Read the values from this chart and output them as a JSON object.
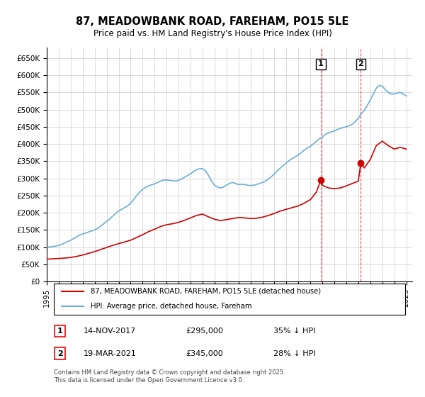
{
  "title": "87, MEADOWBANK ROAD, FAREHAM, PO15 5LE",
  "subtitle": "Price paid vs. HM Land Registry's House Price Index (HPI)",
  "title_fontsize": 11,
  "subtitle_fontsize": 9,
  "hpi_color": "#6aaed6",
  "price_color": "#cc0000",
  "grid_color": "#cccccc",
  "bg_color": "#ffffff",
  "ylim": [
    0,
    680000
  ],
  "yticks": [
    0,
    50000,
    100000,
    150000,
    200000,
    250000,
    300000,
    350000,
    400000,
    450000,
    500000,
    550000,
    600000,
    650000
  ],
  "ytick_labels": [
    "£0",
    "£50K",
    "£100K",
    "£150K",
    "£200K",
    "£250K",
    "£300K",
    "£350K",
    "£400K",
    "£450K",
    "£500K",
    "£550K",
    "£600K",
    "£650K"
  ],
  "xlim_start": 1995.0,
  "xlim_end": 2025.5,
  "marker1_x": 2017.87,
  "marker1_y": 295000,
  "marker1_label": "1",
  "marker1_date": "14-NOV-2017",
  "marker1_price": "£295,000",
  "marker1_hpi": "35% ↓ HPI",
  "marker2_x": 2021.21,
  "marker2_y": 345000,
  "marker2_label": "2",
  "marker2_date": "19-MAR-2021",
  "marker2_price": "£345,000",
  "marker2_hpi": "28% ↓ HPI",
  "legend_line1": "87, MEADOWBANK ROAD, FAREHAM, PO15 5LE (detached house)",
  "legend_line2": "HPI: Average price, detached house, Fareham",
  "footer": "Contains HM Land Registry data © Crown copyright and database right 2025.\nThis data is licensed under the Open Government Licence v3.0.",
  "hpi_x": [
    1995.0,
    1995.25,
    1995.5,
    1995.75,
    1996.0,
    1996.25,
    1996.5,
    1996.75,
    1997.0,
    1997.25,
    1997.5,
    1997.75,
    1998.0,
    1998.25,
    1998.5,
    1998.75,
    1999.0,
    1999.25,
    1999.5,
    1999.75,
    2000.0,
    2000.25,
    2000.5,
    2000.75,
    2001.0,
    2001.25,
    2001.5,
    2001.75,
    2002.0,
    2002.25,
    2002.5,
    2002.75,
    2003.0,
    2003.25,
    2003.5,
    2003.75,
    2004.0,
    2004.25,
    2004.5,
    2004.75,
    2005.0,
    2005.25,
    2005.5,
    2005.75,
    2006.0,
    2006.25,
    2006.5,
    2006.75,
    2007.0,
    2007.25,
    2007.5,
    2007.75,
    2008.0,
    2008.25,
    2008.5,
    2008.75,
    2009.0,
    2009.25,
    2009.5,
    2009.75,
    2010.0,
    2010.25,
    2010.5,
    2010.75,
    2011.0,
    2011.25,
    2011.5,
    2011.75,
    2012.0,
    2012.25,
    2012.5,
    2012.75,
    2013.0,
    2013.25,
    2013.5,
    2013.75,
    2014.0,
    2014.25,
    2014.5,
    2014.75,
    2015.0,
    2015.25,
    2015.5,
    2015.75,
    2016.0,
    2016.25,
    2016.5,
    2016.75,
    2017.0,
    2017.25,
    2017.5,
    2017.75,
    2018.0,
    2018.25,
    2018.5,
    2018.75,
    2019.0,
    2019.25,
    2019.5,
    2019.75,
    2020.0,
    2020.25,
    2020.5,
    2020.75,
    2021.0,
    2021.25,
    2021.5,
    2021.75,
    2022.0,
    2022.25,
    2022.5,
    2022.75,
    2023.0,
    2023.25,
    2023.5,
    2023.75,
    2024.0,
    2024.25,
    2024.5,
    2024.75,
    2025.0
  ],
  "hpi_y": [
    100000,
    100500,
    101500,
    103000,
    105000,
    108000,
    112000,
    116000,
    120000,
    125000,
    130000,
    135000,
    138000,
    141000,
    144000,
    147000,
    150000,
    155000,
    161000,
    168000,
    175000,
    182000,
    190000,
    198000,
    205000,
    210000,
    215000,
    220000,
    228000,
    238000,
    250000,
    260000,
    268000,
    274000,
    278000,
    281000,
    284000,
    288000,
    292000,
    295000,
    295000,
    294000,
    293000,
    292000,
    294000,
    298000,
    303000,
    308000,
    313000,
    320000,
    325000,
    328000,
    328000,
    322000,
    308000,
    292000,
    280000,
    275000,
    272000,
    275000,
    280000,
    285000,
    288000,
    285000,
    282000,
    283000,
    282000,
    280000,
    279000,
    280000,
    282000,
    285000,
    288000,
    292000,
    298000,
    305000,
    313000,
    322000,
    330000,
    338000,
    345000,
    352000,
    358000,
    363000,
    368000,
    375000,
    382000,
    388000,
    393000,
    400000,
    408000,
    415000,
    420000,
    428000,
    432000,
    435000,
    438000,
    442000,
    445000,
    448000,
    450000,
    453000,
    458000,
    465000,
    475000,
    488000,
    498000,
    512000,
    528000,
    545000,
    562000,
    570000,
    568000,
    558000,
    550000,
    545000,
    545000,
    548000,
    550000,
    545000,
    540000
  ],
  "price_x": [
    1995.0,
    1995.5,
    1996.0,
    1996.5,
    1997.0,
    1997.5,
    1998.0,
    1998.5,
    1999.0,
    1999.5,
    2000.0,
    2000.5,
    2001.0,
    2001.5,
    2002.0,
    2002.5,
    2003.0,
    2003.5,
    2004.0,
    2004.5,
    2005.0,
    2005.5,
    2006.0,
    2006.5,
    2007.0,
    2007.5,
    2008.0,
    2008.5,
    2009.0,
    2009.5,
    2010.0,
    2010.5,
    2011.0,
    2011.5,
    2012.0,
    2012.5,
    2013.0,
    2013.5,
    2014.0,
    2014.5,
    2015.0,
    2015.5,
    2016.0,
    2016.5,
    2017.0,
    2017.5,
    2017.87,
    2018.0,
    2018.5,
    2019.0,
    2019.5,
    2020.0,
    2020.5,
    2021.0,
    2021.21,
    2021.5,
    2022.0,
    2022.5,
    2023.0,
    2023.5,
    2024.0,
    2024.5,
    2025.0
  ],
  "price_y": [
    65000,
    66000,
    67000,
    68000,
    70000,
    73000,
    77000,
    82000,
    87000,
    93000,
    99000,
    105000,
    110000,
    115000,
    120000,
    128000,
    136000,
    145000,
    152000,
    160000,
    165000,
    168000,
    172000,
    178000,
    185000,
    192000,
    196000,
    188000,
    181000,
    177000,
    180000,
    183000,
    186000,
    185000,
    183000,
    184000,
    187000,
    192000,
    198000,
    205000,
    210000,
    215000,
    220000,
    228000,
    238000,
    260000,
    295000,
    280000,
    272000,
    270000,
    272000,
    278000,
    285000,
    292000,
    345000,
    330000,
    355000,
    395000,
    408000,
    395000,
    385000,
    390000,
    385000
  ]
}
